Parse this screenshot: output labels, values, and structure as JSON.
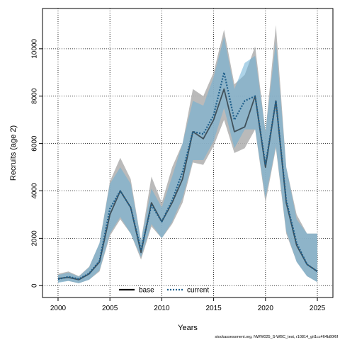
{
  "chart_data": {
    "type": "area",
    "title": "",
    "xlabel": "Years",
    "ylabel": "Recruits (age 2)",
    "xlim": [
      1998.5,
      2026.5
    ],
    "ylim": [
      -500,
      11700
    ],
    "x_ticks": [
      2000,
      2005,
      2010,
      2015,
      2020,
      2025
    ],
    "y_ticks": [
      0,
      2000,
      4000,
      6000,
      8000,
      10000
    ],
    "grid": true,
    "legend_position": "bottom-center",
    "x": [
      2000,
      2001,
      2002,
      2003,
      2004,
      2005,
      2006,
      2007,
      2008,
      2009,
      2010,
      2011,
      2012,
      2013,
      2014,
      2015,
      2016,
      2017,
      2018,
      2019,
      2020,
      2021,
      2022,
      2023,
      2024,
      2025
    ],
    "series": [
      {
        "name": "base",
        "color": "#000000",
        "line_style": "solid",
        "band_color": "#b3b3b3",
        "values": [
          300,
          350,
          250,
          500,
          1000,
          3000,
          4000,
          3300,
          1400,
          3500,
          2700,
          3500,
          4500,
          6500,
          6200,
          7000,
          8300,
          6500,
          6700,
          8000,
          5000,
          7800,
          3500,
          1700,
          900,
          600
        ],
        "lower": [
          150,
          200,
          100,
          250,
          600,
          2100,
          2800,
          2200,
          1100,
          2500,
          2000,
          2600,
          3500,
          5200,
          5100,
          5900,
          7000,
          5600,
          5800,
          6600,
          3500,
          5800,
          2200,
          1000,
          400,
          150
        ],
        "upper": [
          500,
          600,
          400,
          800,
          1800,
          4400,
          5400,
          4500,
          1900,
          4600,
          3500,
          5000,
          6000,
          8300,
          8000,
          9000,
          10800,
          8500,
          8900,
          10100,
          6500,
          11000,
          5000,
          3000,
          2200,
          2200
        ]
      },
      {
        "name": "current",
        "color": "#1f5f8b",
        "line_style": "dotted",
        "band_color": "#6aaed6",
        "values": [
          270,
          380,
          280,
          520,
          1050,
          3250,
          4000,
          3300,
          1500,
          3400,
          2700,
          3600,
          4800,
          6500,
          6400,
          7200,
          9000,
          7000,
          7800,
          8000,
          5100,
          7800,
          3600,
          1800,
          900,
          600
        ],
        "lower": [
          120,
          200,
          100,
          250,
          650,
          2200,
          2900,
          2200,
          1200,
          2600,
          2000,
          2700,
          3700,
          5300,
          5300,
          6100,
          7500,
          5800,
          6600,
          6600,
          3700,
          5900,
          2300,
          1000,
          400,
          150
        ],
        "upper": [
          450,
          550,
          380,
          780,
          1800,
          4300,
          5000,
          4300,
          1900,
          4100,
          3300,
          4600,
          6000,
          7800,
          7600,
          8800,
          10500,
          8300,
          9400,
          9700,
          6500,
          10300,
          5000,
          2800,
          2200,
          2200
        ]
      }
    ],
    "source": "stockassessment.org, NWW025_S-WBC_test, r10814_git1cc464b80f6f"
  }
}
